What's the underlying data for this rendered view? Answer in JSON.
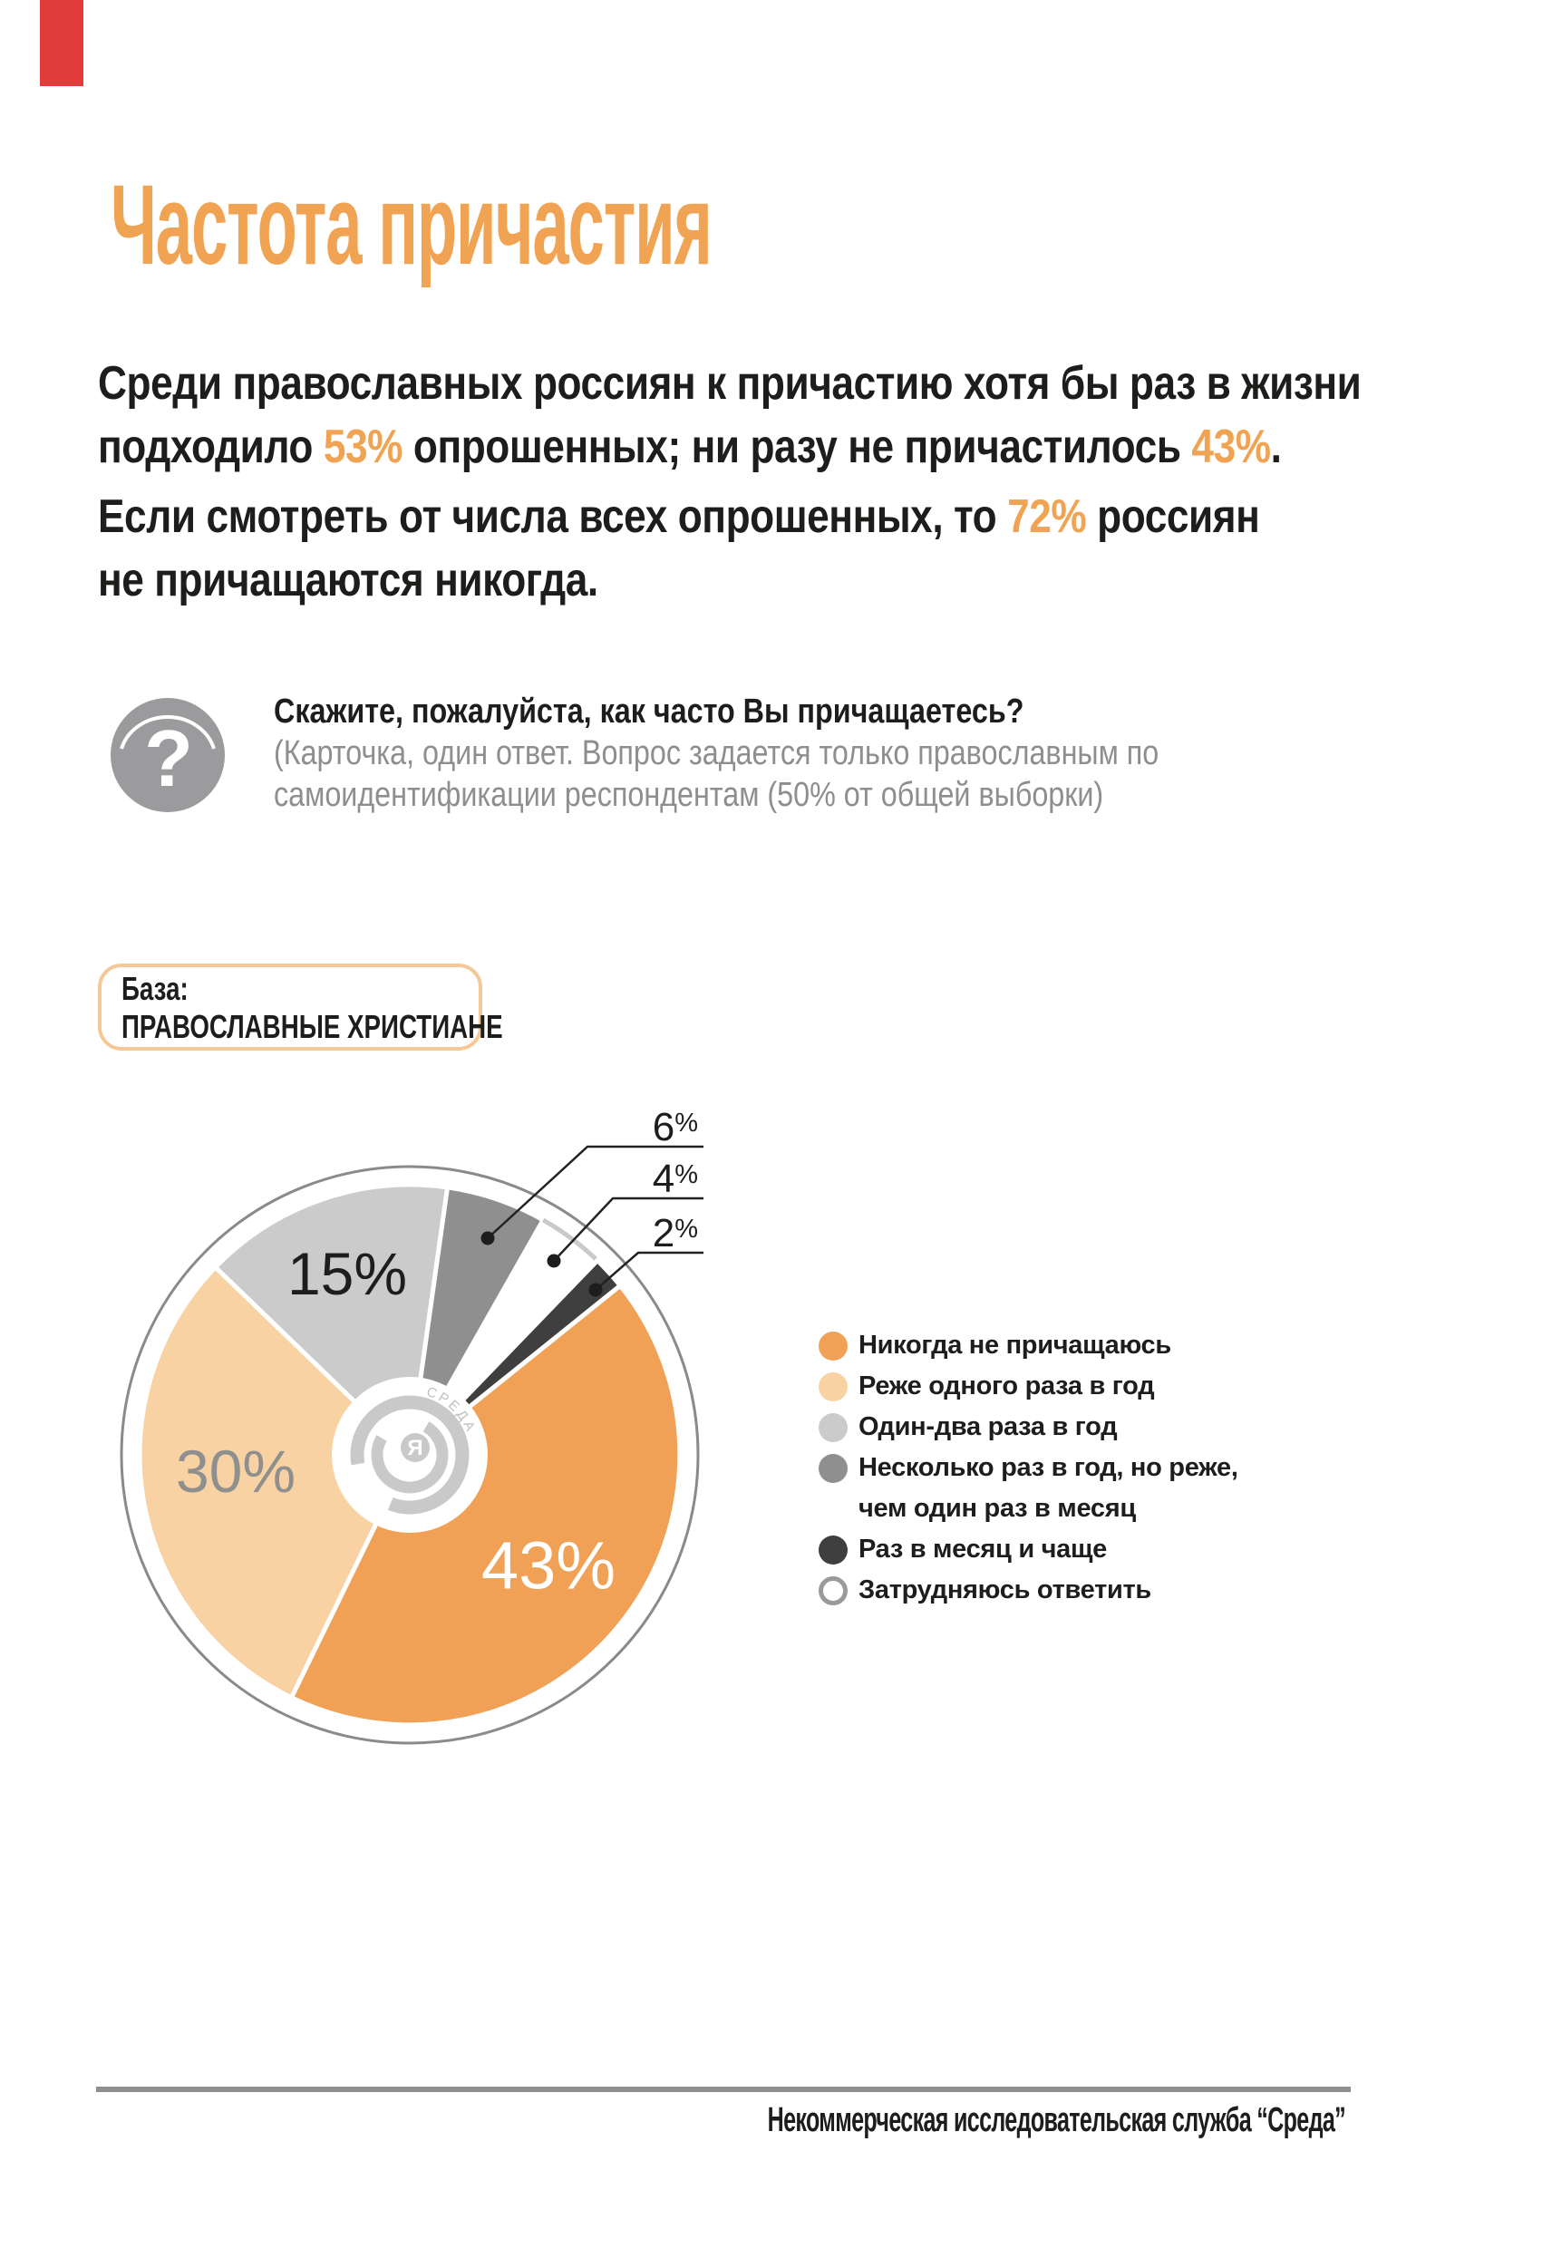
{
  "accent_color": "#f0a352",
  "ribbon_color": "#e23b3c",
  "header": {
    "title": "Частота причастия"
  },
  "intro": {
    "p1_line1": "Среди православных россиян к причастию хотя бы раз в жизни",
    "p1_line2_pre": "подходило ",
    "p1_line2_hl1": "53%",
    "p1_line2_mid": " опрошенных; ни разу не причастилось ",
    "p1_line2_hl2": "43%",
    "p1_line2_end": ".",
    "p2_line1_pre": "Если смотреть от числа всех опрошенных, то ",
    "p2_line1_hl": "72%",
    "p2_line1_end": " россиян",
    "p2_line2": "не причащаются никогда."
  },
  "question": {
    "icon_glyph": "?",
    "text": "Скажите, пожалуйста, как часто Вы причащаетесь?",
    "note_line1": "(Карточка, один ответ. Вопрос задается только православным по",
    "note_line2": "самоидентификации респондентам (50% от общей выборки)"
  },
  "base": {
    "label": "База:",
    "value": "ПРАВОСЛАВНЫЕ ХРИСТИАНЕ"
  },
  "chart_data": {
    "type": "pie",
    "unit": "%",
    "rotation": "clockwise",
    "start_angle_deg": 8,
    "slices": [
      {
        "label": "Никогда не причащаюсь",
        "value": 43,
        "value_label": "43%",
        "color": "#f0a155",
        "value_label_color": "#ffffff"
      },
      {
        "label": "Реже одного раза в год",
        "value": 30,
        "value_label": "30%",
        "color": "#f8d2a2",
        "value_label_color": "#8f8f8f"
      },
      {
        "label": "Один-два раза в год",
        "value": 15,
        "value_label": "15%",
        "color": "#cbcbcb",
        "value_label_color": "#1d1d1b"
      },
      {
        "label": "Несколько раз в год, но реже, чем один раз в месяц",
        "legend_lines": [
          "Несколько раз в год, но реже,",
          " чем один раз в месяц"
        ],
        "value": 6,
        "value_label": "6%",
        "color": "#8f8f8f"
      },
      {
        "label": "Раз в месяц и чаще",
        "value": 2,
        "value_label": "2%",
        "color": "#3f3f3f"
      },
      {
        "label": "Затрудняюсь ответить",
        "value": 4,
        "value_label": "4%",
        "color": "#ffffff",
        "edge": "#c9c9c9",
        "ring": "#9a9a9a"
      }
    ],
    "pie_order": [
      3,
      5,
      4,
      0,
      1,
      2
    ],
    "center_logo_text": "СРЕДА",
    "center_logo_letter": "Я"
  },
  "footer": {
    "text": "Некоммерческая исследовательская служба “Среда”"
  }
}
